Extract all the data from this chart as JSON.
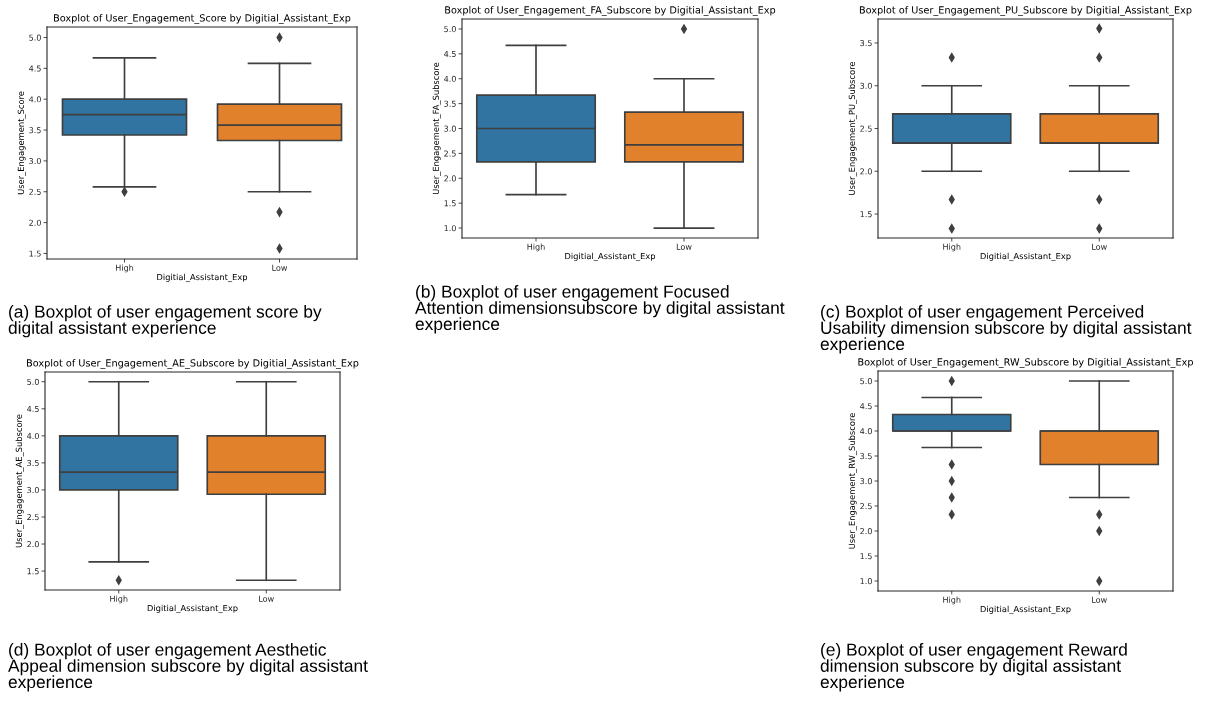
{
  "chart_data": [
    {
      "type": "box",
      "title": "Boxplot of User_Engagement_Score by Digitial_Assistant_Exp",
      "xlabel": "Digitial_Assistant_Exp",
      "ylabel": "User_Engagement_Score",
      "categories": [
        "High",
        "Low"
      ],
      "colors": [
        "#3274a1",
        "#e1812c"
      ],
      "marker": "diamond",
      "boxes": [
        {
          "low": 2.58,
          "q1": 3.42,
          "median": 3.75,
          "q3": 4.0,
          "high": 4.67,
          "outliers": [
            2.5
          ]
        },
        {
          "low": 2.5,
          "q1": 3.33,
          "median": 3.58,
          "q3": 3.92,
          "high": 4.58,
          "outliers": [
            5.0,
            2.17,
            1.58
          ]
        }
      ],
      "ylim": [
        1.41,
        5.17
      ],
      "yticks": [
        1.5,
        {
          "value": 2,
          "label": "2.0"
        },
        2.5,
        {
          "value": 3,
          "label": "3.0"
        },
        3.5,
        {
          "value": 4,
          "label": "4.0"
        },
        4.5,
        {
          "value": 5,
          "label": "5.0"
        }
      ],
      "annotations": [
        "(a) Boxplot of user engagement score by digital assistant experience"
      ]
    },
    {
      "type": "box",
      "title": "Boxplot of User_Engagement_FA_Subscore by Digitial_Assistant_Exp",
      "xlabel": "Digitial_Assistant_Exp",
      "ylabel": "User_Engagement_FA_Subscore",
      "categories": [
        "High",
        "Low"
      ],
      "colors": [
        "#3274a1",
        "#e1812c"
      ],
      "marker": "diamond",
      "boxes": [
        {
          "low": 1.67,
          "q1": 2.33,
          "median": 3.0,
          "q3": 3.67,
          "high": 4.67
        },
        {
          "low": 1.0,
          "q1": 2.33,
          "median": 2.67,
          "q3": 3.33,
          "high": 4.0,
          "outliers": [
            5.0
          ]
        }
      ],
      "ylim": [
        0.8,
        5.2
      ],
      "yticks": [
        {
          "value": 1,
          "label": "1.0"
        },
        1.5,
        {
          "value": 2,
          "label": "2.0"
        },
        2.5,
        {
          "value": 3,
          "label": "3.0"
        },
        3.5,
        {
          "value": 4,
          "label": "4.0"
        },
        4.5,
        {
          "value": 5,
          "label": "5.0"
        }
      ],
      "annotations": [
        "(b) Boxplot of user engagement Focused Attention dimensionsubscore by digital assistant experience"
      ]
    },
    {
      "type": "box",
      "title": "Boxplot of User_Engagement_PU_Subscore by Digitial_Assistant_Exp",
      "xlabel": "Digitial_Assistant_Exp",
      "ylabel": "User_Engagement_PU_Subscore",
      "categories": [
        "High",
        "Low"
      ],
      "colors": [
        "#3274a1",
        "#e1812c"
      ],
      "marker": "diamond",
      "boxes": [
        {
          "low": 2.0,
          "q1": 2.33,
          "median": 2.33,
          "q3": 2.67,
          "high": 3.0,
          "outliers": [
            3.33,
            1.67,
            1.33
          ]
        },
        {
          "low": 2.0,
          "q1": 2.33,
          "median": 2.33,
          "q3": 2.67,
          "high": 3.0,
          "outliers": [
            3.67,
            3.33,
            1.67,
            1.33
          ]
        }
      ],
      "ylim": [
        1.22,
        3.78
      ],
      "yticks": [
        1.5,
        {
          "value": 2,
          "label": "2.0"
        },
        2.5,
        {
          "value": 3,
          "label": "3.0"
        },
        3.5
      ],
      "annotations": [
        "(c) Boxplot of user engagement Perceived Usability dimension subscore by digital assistant experience"
      ]
    },
    {
      "type": "box",
      "title": "Boxplot of User_Engagement_AE_Subscore by Digitial_Assistant_Exp",
      "xlabel": "Digitial_Assistant_Exp",
      "ylabel": "User_Engagement_AE_Subscore",
      "categories": [
        "High",
        "Low"
      ],
      "colors": [
        "#3274a1",
        "#e1812c"
      ],
      "marker": "diamond",
      "boxes": [
        {
          "low": 1.67,
          "q1": 3.0,
          "median": 3.33,
          "q3": 4.0,
          "high": 5.0,
          "outliers": [
            1.33
          ]
        },
        {
          "low": 1.33,
          "q1": 2.92,
          "median": 3.33,
          "q3": 4.0,
          "high": 5.0
        }
      ],
      "ylim": [
        1.15,
        5.18
      ],
      "yticks": [
        1.5,
        {
          "value": 2,
          "label": "2.0"
        },
        2.5,
        {
          "value": 3,
          "label": "3.0"
        },
        3.5,
        {
          "value": 4,
          "label": "4.0"
        },
        4.5,
        {
          "value": 5,
          "label": "5.0"
        }
      ],
      "annotations": [
        "(d) Boxplot of user engagement Aesthetic Appeal dimension subscore by digital assistant experience"
      ]
    },
    {
      "type": "box",
      "title": "Boxplot of User_Engagement_RW_Subscore by Digitial_Assistant_Exp",
      "xlabel": "Digitial_Assistant_Exp",
      "ylabel": "User_Engagement_RW_Subscore",
      "categories": [
        "High",
        "Low"
      ],
      "colors": [
        "#3274a1",
        "#e1812c"
      ],
      "marker": "diamond",
      "boxes": [
        {
          "low": 3.67,
          "q1": 4.0,
          "median": 4.0,
          "q3": 4.33,
          "high": 4.67,
          "outliers": [
            5.0,
            3.33,
            3.0,
            2.67,
            2.33
          ]
        },
        {
          "low": 2.67,
          "q1": 3.33,
          "median": 4.0,
          "q3": 4.0,
          "high": 5.0,
          "outliers": [
            2.33,
            2.0,
            1.0
          ]
        }
      ],
      "ylim": [
        0.8,
        5.2
      ],
      "yticks": [
        {
          "value": 1,
          "label": "1.0"
        },
        1.5,
        {
          "value": 2,
          "label": "2.0"
        },
        2.5,
        {
          "value": 3,
          "label": "3.0"
        },
        3.5,
        {
          "value": 4,
          "label": "4.0"
        },
        4.5,
        {
          "value": 5,
          "label": "5.0"
        }
      ],
      "annotations": [
        "(e) Boxplot of user engagement Reward dimension subscore by digital assistant experience"
      ]
    }
  ]
}
